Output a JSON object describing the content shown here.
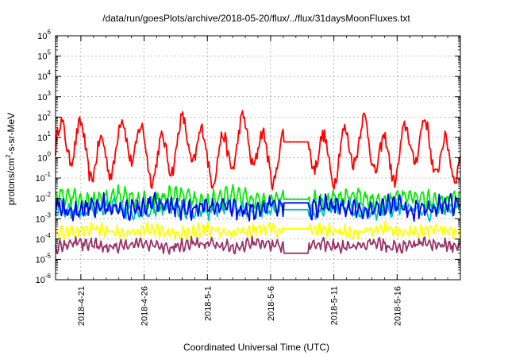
{
  "chart_data": {
    "type": "line",
    "title": "/data/run/goesPlots/archive/2018-05-20/flux/../flux/31daysMoonFluxes.txt",
    "xlabel": "Coordinated Universal Time (UTC)",
    "ylabel_parts": {
      "a": "protons/cm",
      "sup": "2",
      "b": "-s-sr-MeV"
    },
    "yscale": "log",
    "ylim": [
      1e-06,
      1000000.0
    ],
    "xlim": [
      "2018-04-19",
      "2018-05-21"
    ],
    "grid": true,
    "y_ticks": [
      {
        "base": "10",
        "exp": "-6"
      },
      {
        "base": "10",
        "exp": "-5"
      },
      {
        "base": "10",
        "exp": "-4"
      },
      {
        "base": "10",
        "exp": "-3"
      },
      {
        "base": "10",
        "exp": "-2"
      },
      {
        "base": "10",
        "exp": "-1"
      },
      {
        "base": "10",
        "exp": "0"
      },
      {
        "base": "10",
        "exp": "1"
      },
      {
        "base": "10",
        "exp": "2"
      },
      {
        "base": "10",
        "exp": "3"
      },
      {
        "base": "10",
        "exp": "4"
      },
      {
        "base": "10",
        "exp": "5"
      },
      {
        "base": "10",
        "exp": "6"
      }
    ],
    "x_ticks": [
      "2018-4-21",
      "2018-4-26",
      "2018-5-1",
      "2018-5-6",
      "2018-5-11",
      "2018-5-16"
    ],
    "gap": {
      "start": "2018-05-07",
      "end": "2018-05-09"
    },
    "series": [
      {
        "color": "#ff0000",
        "center": 2.5,
        "spread": 1.1,
        "noise": 0.35,
        "period": 1.6,
        "gap_value": 6
      },
      {
        "color": "#00ee00",
        "center": 0.009,
        "spread": 0.35,
        "noise": 0.25,
        "period": 0.5,
        "gap_value": 0.009
      },
      {
        "color": "#00c0c0",
        "center": 0.0028,
        "spread": 0.25,
        "noise": 0.25,
        "period": 0.6,
        "gap_value": 0.0028
      },
      {
        "color": "#0000ff",
        "center": 0.0035,
        "spread": 0.3,
        "noise": 0.3,
        "period": 0.45,
        "gap_value": 0.006
      },
      {
        "color": "#ffff00",
        "center": 0.00025,
        "spread": 0.2,
        "noise": 0.2,
        "period": 0.4,
        "gap_value": 0.00032
      },
      {
        "color": "#993366",
        "center": 5e-05,
        "spread": 0.18,
        "noise": 0.2,
        "period": 0.4,
        "gap_value": 2e-05
      }
    ]
  }
}
